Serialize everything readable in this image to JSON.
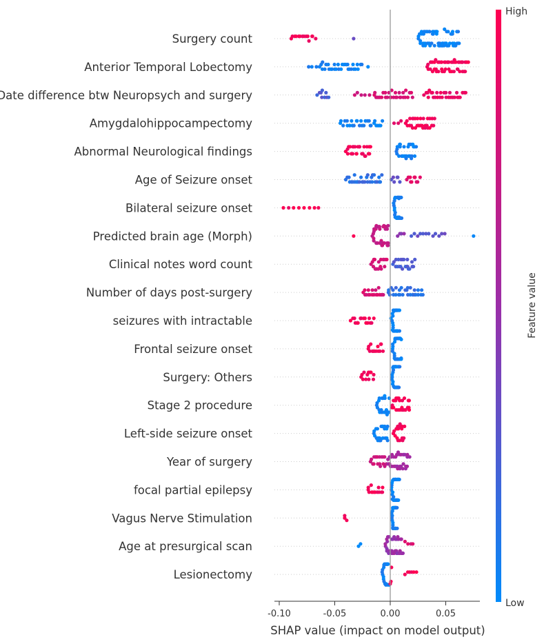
{
  "chart_data": {
    "type": "scatter",
    "subtype": "beeswarm",
    "xlabel": "SHAP value (impact on model output)",
    "xlim": [
      -0.105,
      0.078
    ],
    "xticks": [
      -0.1,
      -0.05,
      0.0,
      0.05
    ],
    "xtick_labels": [
      "-0.10",
      "-0.05",
      "0.00",
      "0.05"
    ],
    "grid": false,
    "colorbar": {
      "label": "Feature value",
      "high_label": "High",
      "low_label": "Low",
      "low_color": "#008bfb",
      "high_color": "#ff0051",
      "mid_color": "#9b2ea8"
    },
    "features": [
      {
        "name": "Surgery count",
        "clusters": [
          {
            "min": -0.09,
            "max": -0.067,
            "n": 14,
            "fv": 0.95
          },
          {
            "min": -0.033,
            "max": -0.033,
            "n": 1,
            "fv": 0.35
          },
          {
            "min": 0.025,
            "max": 0.062,
            "n": 70,
            "fv": 0.05
          }
        ]
      },
      {
        "name": "Anterior Temporal Lobectomy",
        "clusters": [
          {
            "min": -0.076,
            "max": -0.065,
            "n": 3,
            "fv": 0.05
          },
          {
            "min": -0.065,
            "max": -0.025,
            "n": 30,
            "fv": 0.05
          },
          {
            "min": -0.02,
            "max": -0.02,
            "n": 1,
            "fv": 0.05
          },
          {
            "min": 0.033,
            "max": 0.07,
            "n": 50,
            "fv": 0.95
          }
        ]
      },
      {
        "name": "Date difference btw Neuropsych and surgery",
        "clusters": [
          {
            "min": -0.066,
            "max": -0.055,
            "n": 9,
            "fv": 0.25
          },
          {
            "min": -0.034,
            "max": -0.017,
            "n": 5,
            "fv": 0.75
          },
          {
            "min": -0.015,
            "max": 0.02,
            "n": 30,
            "fv": 0.8
          },
          {
            "min": 0.03,
            "max": 0.068,
            "n": 30,
            "fv": 0.9
          }
        ]
      },
      {
        "name": "Amygdalohippocampectomy",
        "clusters": [
          {
            "min": -0.046,
            "max": -0.006,
            "n": 28,
            "fv": 0.05
          },
          {
            "min": 0.002,
            "max": 0.012,
            "n": 3,
            "fv": 0.9
          },
          {
            "min": 0.014,
            "max": 0.04,
            "n": 30,
            "fv": 0.95
          }
        ]
      },
      {
        "name": "Abnormal Neurological findings",
        "clusters": [
          {
            "min": -0.04,
            "max": -0.017,
            "n": 26,
            "fv": 0.95
          },
          {
            "min": 0.005,
            "max": 0.023,
            "n": 30,
            "fv": 0.05
          }
        ]
      },
      {
        "name": "Age of Seizure onset",
        "clusters": [
          {
            "min": -0.04,
            "max": -0.007,
            "n": 30,
            "fv": 0.15
          },
          {
            "min": 0.0,
            "max": 0.01,
            "n": 6,
            "fv": 0.3
          },
          {
            "min": 0.014,
            "max": 0.027,
            "n": 10,
            "fv": 0.85
          }
        ]
      },
      {
        "name": "Bilateral seizure onset",
        "clusters": [
          {
            "min": -0.098,
            "max": -0.062,
            "n": 8,
            "fv": 0.95
          },
          {
            "min": 0.003,
            "max": 0.01,
            "n": 30,
            "fv": 0.05
          }
        ]
      },
      {
        "name": "Predicted brain age (Morph)",
        "clusters": [
          {
            "min": -0.033,
            "max": -0.033,
            "n": 1,
            "fv": 0.95
          },
          {
            "min": -0.016,
            "max": -0.001,
            "n": 38,
            "fv": 0.7
          },
          {
            "min": 0.005,
            "max": 0.014,
            "n": 4,
            "fv": 0.45
          },
          {
            "min": 0.018,
            "max": 0.05,
            "n": 12,
            "fv": 0.3
          },
          {
            "min": 0.075,
            "max": 0.075,
            "n": 1,
            "fv": 0.05
          }
        ]
      },
      {
        "name": "Clinical notes word count",
        "clusters": [
          {
            "min": -0.018,
            "max": -0.003,
            "n": 18,
            "fv": 0.8
          },
          {
            "min": 0.002,
            "max": 0.022,
            "n": 22,
            "fv": 0.25
          }
        ]
      },
      {
        "name": "Number of days post-surgery",
        "clusters": [
          {
            "min": -0.025,
            "max": -0.005,
            "n": 18,
            "fv": 0.8
          },
          {
            "min": -0.003,
            "max": 0.03,
            "n": 28,
            "fv": 0.15
          }
        ]
      },
      {
        "name": "seizures with intractable",
        "clusters": [
          {
            "min": -0.036,
            "max": -0.014,
            "n": 16,
            "fv": 0.95
          },
          {
            "min": 0.001,
            "max": 0.008,
            "n": 34,
            "fv": 0.05
          }
        ]
      },
      {
        "name": "Frontal seizure onset",
        "clusters": [
          {
            "min": -0.021,
            "max": -0.006,
            "n": 14,
            "fv": 0.95
          },
          {
            "min": 0.002,
            "max": 0.01,
            "n": 34,
            "fv": 0.05
          }
        ]
      },
      {
        "name": "Surgery: Others",
        "clusters": [
          {
            "min": -0.027,
            "max": -0.014,
            "n": 12,
            "fv": 0.95
          },
          {
            "min": 0.001,
            "max": 0.008,
            "n": 34,
            "fv": 0.05
          }
        ]
      },
      {
        "name": "Stage 2 procedure",
        "clusters": [
          {
            "min": -0.012,
            "max": -0.001,
            "n": 24,
            "fv": 0.05
          },
          {
            "min": 0.001,
            "max": 0.018,
            "n": 26,
            "fv": 0.95
          }
        ]
      },
      {
        "name": "Left-side seizure onset",
        "clusters": [
          {
            "min": -0.015,
            "max": -0.002,
            "n": 24,
            "fv": 0.05
          },
          {
            "min": 0.003,
            "max": 0.013,
            "n": 18,
            "fv": 0.95
          }
        ]
      },
      {
        "name": "Year of surgery",
        "clusters": [
          {
            "min": -0.018,
            "max": -0.003,
            "n": 18,
            "fv": 0.75
          },
          {
            "min": -0.002,
            "max": 0.017,
            "n": 34,
            "fv": 0.55
          }
        ]
      },
      {
        "name": "focal partial epilepsy",
        "clusters": [
          {
            "min": -0.021,
            "max": -0.006,
            "n": 14,
            "fv": 0.95
          },
          {
            "min": 0.001,
            "max": 0.008,
            "n": 34,
            "fv": 0.05
          }
        ]
      },
      {
        "name": "Vagus Nerve Stimulation",
        "clusters": [
          {
            "min": -0.042,
            "max": -0.039,
            "n": 3,
            "fv": 0.95
          },
          {
            "min": 0.001,
            "max": 0.006,
            "n": 34,
            "fv": 0.05
          }
        ]
      },
      {
        "name": "Age at presurgical scan",
        "clusters": [
          {
            "min": -0.03,
            "max": -0.026,
            "n": 2,
            "fv": 0.05
          },
          {
            "min": -0.005,
            "max": 0.012,
            "n": 36,
            "fv": 0.5
          },
          {
            "min": 0.012,
            "max": 0.022,
            "n": 4,
            "fv": 0.8
          }
        ]
      },
      {
        "name": "Lesionectomy",
        "clusters": [
          {
            "min": -0.007,
            "max": -0.001,
            "n": 28,
            "fv": 0.05
          },
          {
            "min": 0.0,
            "max": 0.002,
            "n": 3,
            "fv": 0.95
          },
          {
            "min": 0.012,
            "max": 0.025,
            "n": 6,
            "fv": 0.95
          }
        ]
      }
    ]
  }
}
